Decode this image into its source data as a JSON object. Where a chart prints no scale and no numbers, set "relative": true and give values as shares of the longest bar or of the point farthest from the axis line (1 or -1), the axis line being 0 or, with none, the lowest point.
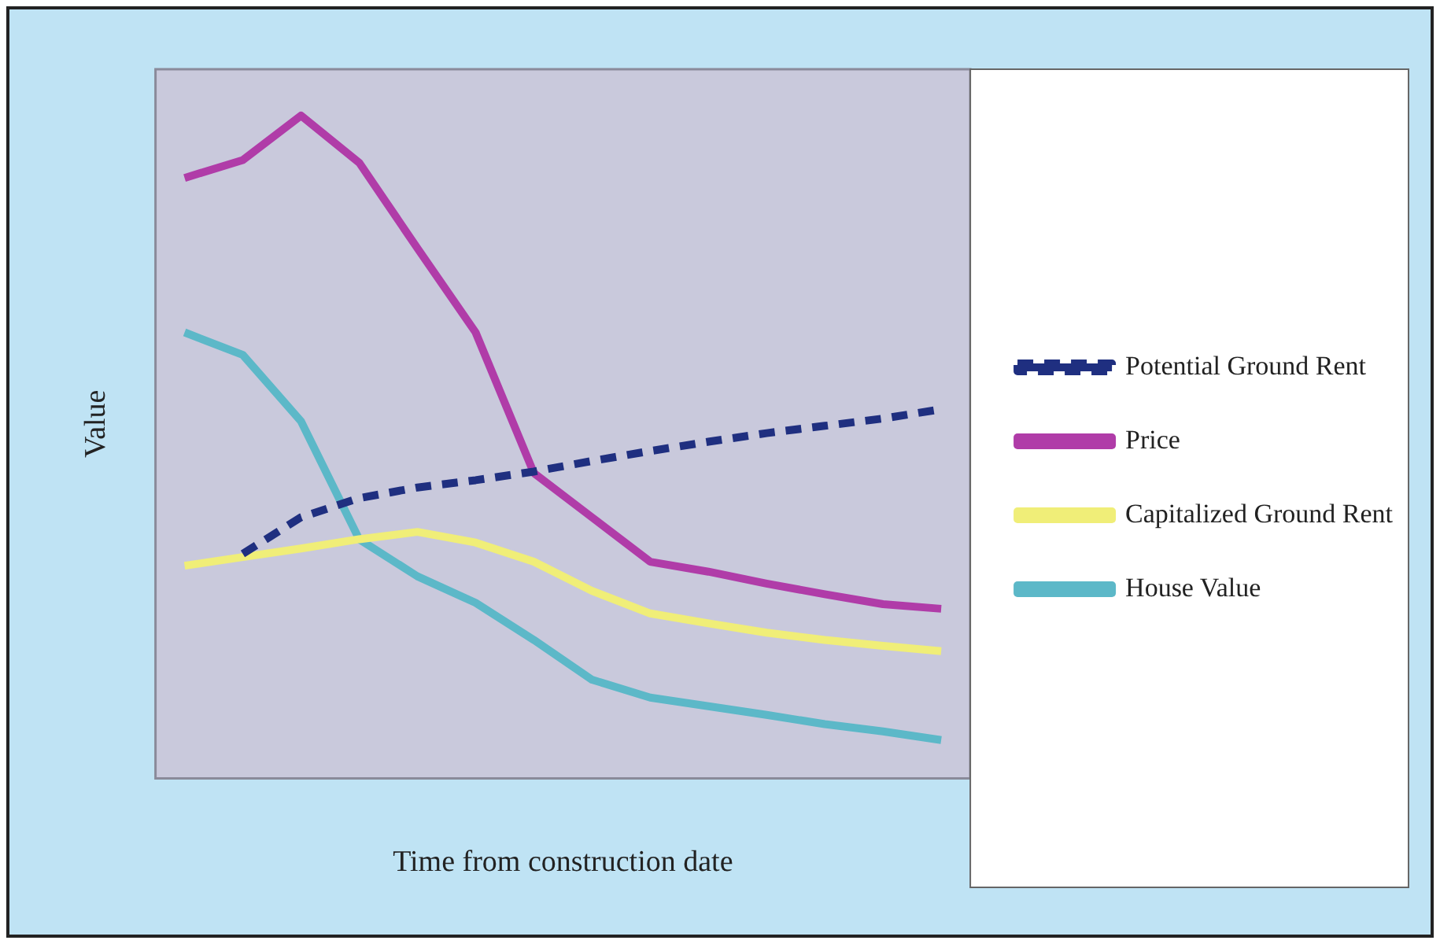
{
  "chart_data": {
    "type": "line",
    "relative": true,
    "xlabel": "Time from construction date",
    "ylabel": "Value",
    "categories": [
      null,
      null,
      null,
      null,
      null,
      null,
      null,
      null,
      null,
      null,
      null,
      null,
      null,
      null
    ],
    "grid": false,
    "legend": "right",
    "marker": "none",
    "series": [
      {
        "name": "Potential Ground Rent",
        "color": "#1f2f80",
        "line_style": "dashed",
        "values": [
          null,
          0.339,
          0.394,
          0.423,
          0.439,
          0.45,
          0.463,
          0.479,
          0.494,
          0.508,
          0.521,
          0.532,
          0.543,
          0.557
        ]
      },
      {
        "name": "Price",
        "color": "#b03ca8",
        "line_style": "solid",
        "values": [
          0.906,
          0.933,
          1,
          0.929,
          0.8,
          0.673,
          0.461,
          0.394,
          0.327,
          0.312,
          0.294,
          0.278,
          0.263,
          0.256
        ]
      },
      {
        "name": "Capitalized Ground Rent",
        "color": "#f0ee78",
        "line_style": "solid",
        "values": [
          0.321,
          0.334,
          0.347,
          0.361,
          0.372,
          0.356,
          0.327,
          0.283,
          0.249,
          0.234,
          0.22,
          0.209,
          0.2,
          0.192
        ]
      },
      {
        "name": "House Value",
        "color": "#5cb8c8",
        "line_style": "solid",
        "values": [
          0.673,
          0.639,
          0.539,
          0.361,
          0.305,
          0.265,
          0.209,
          0.149,
          0.122,
          0.109,
          0.096,
          0.082,
          0.071,
          0.058
        ]
      }
    ]
  }
}
